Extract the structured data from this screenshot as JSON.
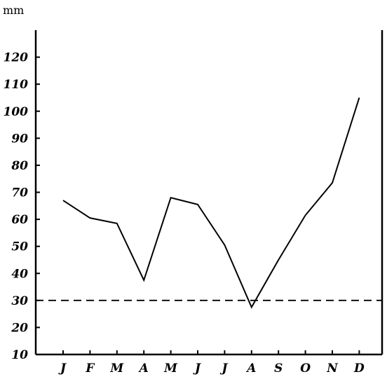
{
  "chart_data": {
    "type": "line",
    "title": "",
    "xlabel": "",
    "ylabel": "mm",
    "categories": [
      "J",
      "F",
      "M",
      "A",
      "M",
      "J",
      "J",
      "A",
      "S",
      "O",
      "N",
      "D"
    ],
    "series": [
      {
        "values": [
          67,
          60.5,
          58.5,
          37.5,
          68,
          65.5,
          50.5,
          27.5,
          45,
          61.5,
          73.5,
          105
        ]
      }
    ],
    "reference_line": {
      "y": 30,
      "style": "dashed"
    },
    "ylim": [
      10,
      130
    ],
    "yticks": [
      "10",
      "20",
      "30",
      "40",
      "50",
      "60",
      "70",
      "80",
      "90",
      "100",
      "110",
      "120"
    ],
    "grid": false,
    "legend": "none",
    "colors": {
      "line": "#000000",
      "axis": "#000000"
    }
  }
}
